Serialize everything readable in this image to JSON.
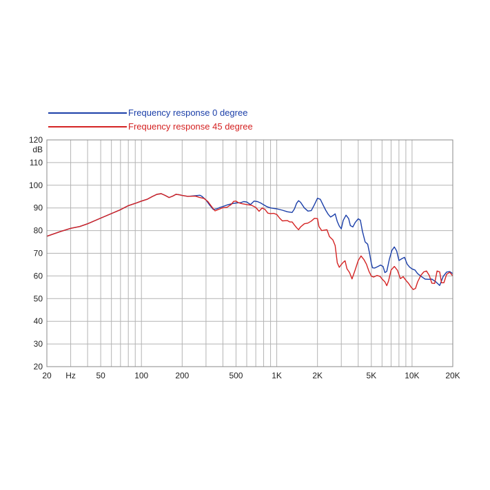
{
  "chart_data": {
    "type": "line",
    "title": "",
    "xlabel": "",
    "ylabel": "",
    "y_unit_label": "dB",
    "x_scale": "log",
    "xlim": [
      20,
      20000
    ],
    "ylim": [
      20,
      120
    ],
    "grid": true,
    "legend_position": "top-left",
    "x_tick_labels": [
      {
        "value": 20,
        "label": "20"
      },
      {
        "value": 30,
        "label": "Hz"
      },
      {
        "value": 50,
        "label": "50"
      },
      {
        "value": 100,
        "label": "100"
      },
      {
        "value": 200,
        "label": "200"
      },
      {
        "value": 500,
        "label": "500"
      },
      {
        "value": 1000,
        "label": "1K"
      },
      {
        "value": 2000,
        "label": "2K"
      },
      {
        "value": 5000,
        "label": "5K"
      },
      {
        "value": 10000,
        "label": "10K"
      },
      {
        "value": 20000,
        "label": "20K"
      }
    ],
    "x_gridlines": [
      20,
      30,
      40,
      50,
      60,
      70,
      80,
      90,
      100,
      200,
      300,
      400,
      500,
      600,
      700,
      800,
      900,
      1000,
      2000,
      3000,
      4000,
      5000,
      6000,
      7000,
      8000,
      9000,
      10000,
      20000
    ],
    "y_ticks": [
      20,
      30,
      40,
      50,
      60,
      70,
      80,
      90,
      100,
      110,
      120
    ],
    "series": [
      {
        "name": "Frequency response 0 degree",
        "color": "#1a3ea8",
        "points": [
          [
            20,
            77.5
          ],
          [
            25,
            79.5
          ],
          [
            30,
            81
          ],
          [
            35,
            81.8
          ],
          [
            40,
            83
          ],
          [
            50,
            85.5
          ],
          [
            60,
            87.5
          ],
          [
            70,
            89.2
          ],
          [
            80,
            91
          ],
          [
            90,
            92
          ],
          [
            100,
            93
          ],
          [
            110,
            93.8
          ],
          [
            120,
            95
          ],
          [
            130,
            96
          ],
          [
            140,
            96.3
          ],
          [
            150,
            95.5
          ],
          [
            160,
            94.6
          ],
          [
            170,
            95.2
          ],
          [
            180,
            96
          ],
          [
            190,
            95.8
          ],
          [
            200,
            95.5
          ],
          [
            220,
            95.1
          ],
          [
            250,
            95.4
          ],
          [
            270,
            95.6
          ],
          [
            280,
            95.1
          ],
          [
            300,
            93.5
          ],
          [
            320,
            91.2
          ],
          [
            340,
            89.3
          ],
          [
            360,
            89.6
          ],
          [
            380,
            90.2
          ],
          [
            400,
            90.6
          ],
          [
            430,
            91.3
          ],
          [
            460,
            91.8
          ],
          [
            500,
            92.2
          ],
          [
            540,
            92.3
          ],
          [
            570,
            92.8
          ],
          [
            600,
            92.6
          ],
          [
            640,
            91.5
          ],
          [
            680,
            93
          ],
          [
            720,
            92.8
          ],
          [
            760,
            92.2
          ],
          [
            800,
            91.4
          ],
          [
            850,
            90.5
          ],
          [
            900,
            90
          ],
          [
            950,
            89.8
          ],
          [
            1000,
            89.6
          ],
          [
            1100,
            89
          ],
          [
            1200,
            88.3
          ],
          [
            1300,
            88
          ],
          [
            1350,
            89.5
          ],
          [
            1400,
            92
          ],
          [
            1450,
            93.2
          ],
          [
            1500,
            92.5
          ],
          [
            1600,
            90
          ],
          [
            1700,
            88.6
          ],
          [
            1800,
            88.8
          ],
          [
            1900,
            91.5
          ],
          [
            2000,
            94.3
          ],
          [
            2100,
            93.8
          ],
          [
            2200,
            91.3
          ],
          [
            2300,
            89
          ],
          [
            2400,
            87.2
          ],
          [
            2500,
            86
          ],
          [
            2600,
            86.6
          ],
          [
            2700,
            87.4
          ],
          [
            2800,
            84
          ],
          [
            2900,
            82
          ],
          [
            3000,
            80.8
          ],
          [
            3100,
            84.5
          ],
          [
            3250,
            86.8
          ],
          [
            3400,
            85.3
          ],
          [
            3500,
            82.2
          ],
          [
            3650,
            81.6
          ],
          [
            3800,
            83.6
          ],
          [
            4000,
            85.2
          ],
          [
            4150,
            84.6
          ],
          [
            4300,
            79.7
          ],
          [
            4500,
            75
          ],
          [
            4700,
            74
          ],
          [
            4850,
            70.1
          ],
          [
            5000,
            65.6
          ],
          [
            5100,
            63.6
          ],
          [
            5300,
            63.5
          ],
          [
            5600,
            64.2
          ],
          [
            5850,
            64.8
          ],
          [
            6100,
            64.2
          ],
          [
            6300,
            61.5
          ],
          [
            6500,
            62
          ],
          [
            6800,
            67.4
          ],
          [
            7100,
            71.3
          ],
          [
            7400,
            72.8
          ],
          [
            7700,
            71
          ],
          [
            8000,
            66.8
          ],
          [
            8400,
            67.6
          ],
          [
            8800,
            68.2
          ],
          [
            9200,
            65.2
          ],
          [
            9600,
            63.9
          ],
          [
            10000,
            63.1
          ],
          [
            10500,
            62.6
          ],
          [
            11000,
            61
          ],
          [
            11800,
            59.6
          ],
          [
            12500,
            58.6
          ],
          [
            13300,
            58.5
          ],
          [
            14000,
            58.6
          ],
          [
            15000,
            57.4
          ],
          [
            16000,
            55.8
          ],
          [
            17000,
            59.8
          ],
          [
            18000,
            61.7
          ],
          [
            19000,
            61.9
          ],
          [
            20000,
            61
          ]
        ]
      },
      {
        "name": "Frequency response 45 degree",
        "color": "#d42222",
        "points": [
          [
            20,
            77.5
          ],
          [
            25,
            79.5
          ],
          [
            30,
            81
          ],
          [
            35,
            81.8
          ],
          [
            40,
            83
          ],
          [
            50,
            85.5
          ],
          [
            60,
            87.5
          ],
          [
            70,
            89.2
          ],
          [
            80,
            91
          ],
          [
            90,
            92
          ],
          [
            100,
            93
          ],
          [
            110,
            93.8
          ],
          [
            120,
            95
          ],
          [
            130,
            96
          ],
          [
            140,
            96.3
          ],
          [
            150,
            95.5
          ],
          [
            160,
            94.6
          ],
          [
            170,
            95.2
          ],
          [
            180,
            96
          ],
          [
            190,
            95.8
          ],
          [
            200,
            95.5
          ],
          [
            220,
            95.1
          ],
          [
            250,
            95.2
          ],
          [
            270,
            94.6
          ],
          [
            290,
            94.2
          ],
          [
            310,
            92.8
          ],
          [
            330,
            90.6
          ],
          [
            350,
            88.7
          ],
          [
            370,
            89.3
          ],
          [
            400,
            90.1
          ],
          [
            430,
            90.3
          ],
          [
            460,
            91.5
          ],
          [
            480,
            92.9
          ],
          [
            500,
            93
          ],
          [
            520,
            92.3
          ],
          [
            550,
            91.9
          ],
          [
            600,
            91.5
          ],
          [
            650,
            91.2
          ],
          [
            700,
            90.2
          ],
          [
            740,
            88.5
          ],
          [
            780,
            90
          ],
          [
            820,
            89.3
          ],
          [
            860,
            87.7
          ],
          [
            900,
            87.5
          ],
          [
            950,
            87.6
          ],
          [
            1000,
            87.1
          ],
          [
            1050,
            85.5
          ],
          [
            1100,
            84.3
          ],
          [
            1200,
            84.4
          ],
          [
            1250,
            83.8
          ],
          [
            1300,
            83.8
          ],
          [
            1350,
            82.5
          ],
          [
            1400,
            81.3
          ],
          [
            1450,
            80.4
          ],
          [
            1500,
            81.6
          ],
          [
            1600,
            83
          ],
          [
            1700,
            83.3
          ],
          [
            1800,
            84.2
          ],
          [
            1900,
            85.4
          ],
          [
            2000,
            85.3
          ],
          [
            2050,
            81.8
          ],
          [
            2150,
            80
          ],
          [
            2250,
            80.2
          ],
          [
            2350,
            80.4
          ],
          [
            2450,
            77.4
          ],
          [
            2600,
            75.9
          ],
          [
            2700,
            73.4
          ],
          [
            2800,
            65.8
          ],
          [
            2900,
            63.8
          ],
          [
            3000,
            65
          ],
          [
            3100,
            66
          ],
          [
            3200,
            66.7
          ],
          [
            3300,
            63.2
          ],
          [
            3450,
            61.5
          ],
          [
            3600,
            58.7
          ],
          [
            3800,
            62.7
          ],
          [
            4000,
            66.8
          ],
          [
            4200,
            68.8
          ],
          [
            4400,
            67.3
          ],
          [
            4600,
            65.2
          ],
          [
            4800,
            62.1
          ],
          [
            5000,
            59.9
          ],
          [
            5200,
            59.5
          ],
          [
            5500,
            60.2
          ],
          [
            5800,
            59.8
          ],
          [
            6000,
            58.7
          ],
          [
            6300,
            57.4
          ],
          [
            6500,
            55.7
          ],
          [
            6700,
            57.8
          ],
          [
            7000,
            62.6
          ],
          [
            7400,
            64.2
          ],
          [
            7800,
            62.5
          ],
          [
            8200,
            58.8
          ],
          [
            8600,
            59.7
          ],
          [
            9000,
            58.1
          ],
          [
            9400,
            56.8
          ],
          [
            9800,
            55.2
          ],
          [
            10200,
            54
          ],
          [
            10600,
            54.5
          ],
          [
            11000,
            57.4
          ],
          [
            11600,
            60.2
          ],
          [
            12200,
            61.8
          ],
          [
            12800,
            62.2
          ],
          [
            13400,
            60.2
          ],
          [
            14000,
            56.8
          ],
          [
            14700,
            56.7
          ],
          [
            15300,
            62.2
          ],
          [
            16000,
            61.8
          ],
          [
            16500,
            57
          ],
          [
            17200,
            57
          ],
          [
            18000,
            60.7
          ],
          [
            19000,
            61.6
          ],
          [
            20000,
            60
          ]
        ]
      }
    ]
  }
}
